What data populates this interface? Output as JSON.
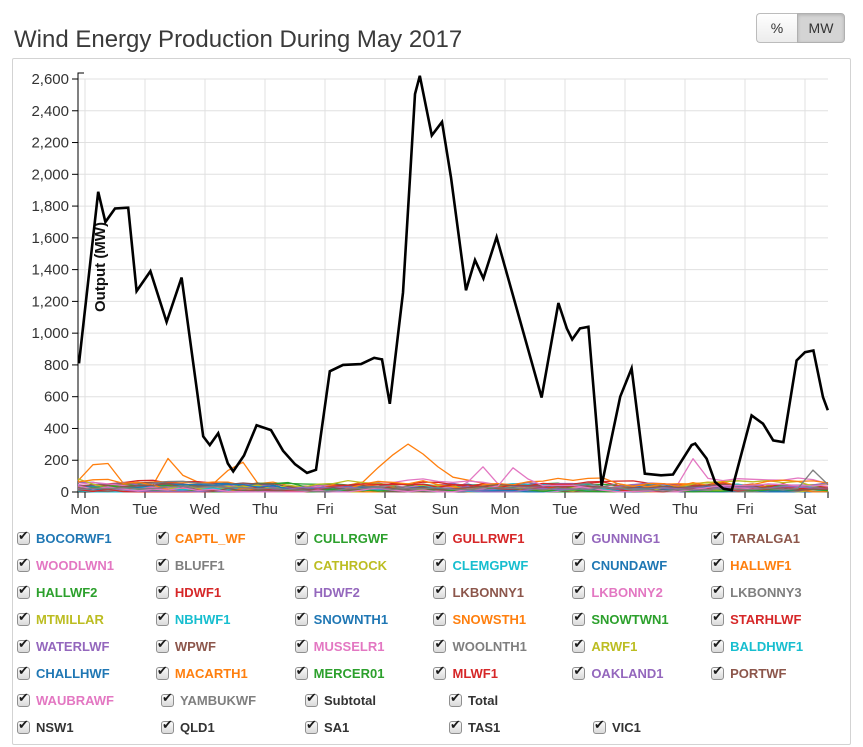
{
  "header": {
    "title": "Wind Energy Production During May 2017",
    "unit_toggle": {
      "percent_label": "%",
      "mw_label": "MW",
      "selected": "MW"
    }
  },
  "chart_data": {
    "type": "line",
    "title": "Wind Energy Production During May 2017",
    "xlabel": "",
    "ylabel": "Output (MW)",
    "ylim": [
      0,
      2600
    ],
    "y_tick_step": 200,
    "y_tick_labels": [
      "0",
      "200",
      "400",
      "600",
      "800",
      "1,000",
      "1,200",
      "1,400",
      "1,600",
      "1,800",
      "2,000",
      "2,200",
      "2,400",
      "2,600"
    ],
    "x_tick_labels": [
      "Mon",
      "Tue",
      "Wed",
      "Thu",
      "Fri",
      "Sat",
      "Sun",
      "Mon",
      "Tue",
      "Wed",
      "Thu",
      "Fri",
      "Sat"
    ],
    "x_unit": "days (Mon = 0, one tick per day)",
    "grid": true,
    "legend_position": "bottom",
    "total_series": {
      "name": "Total",
      "color": "#000000",
      "points": [
        [
          -0.1,
          810
        ],
        [
          0.22,
          1890
        ],
        [
          0.34,
          1700
        ],
        [
          0.5,
          1785
        ],
        [
          0.72,
          1790
        ],
        [
          0.86,
          1265
        ],
        [
          1.09,
          1390
        ],
        [
          1.36,
          1070
        ],
        [
          1.61,
          1350
        ],
        [
          1.97,
          350
        ],
        [
          2.08,
          295
        ],
        [
          2.22,
          370
        ],
        [
          2.38,
          180
        ],
        [
          2.47,
          130
        ],
        [
          2.65,
          230
        ],
        [
          2.86,
          420
        ],
        [
          3.1,
          390
        ],
        [
          3.3,
          260
        ],
        [
          3.5,
          175
        ],
        [
          3.7,
          120
        ],
        [
          3.85,
          140
        ],
        [
          4.08,
          760
        ],
        [
          4.3,
          800
        ],
        [
          4.6,
          805
        ],
        [
          4.82,
          845
        ],
        [
          4.95,
          835
        ],
        [
          5.08,
          555
        ],
        [
          5.3,
          1255
        ],
        [
          5.42,
          2000
        ],
        [
          5.5,
          2505
        ],
        [
          5.58,
          2620
        ],
        [
          5.78,
          2245
        ],
        [
          5.95,
          2330
        ],
        [
          6.1,
          1980
        ],
        [
          6.35,
          1270
        ],
        [
          6.5,
          1460
        ],
        [
          6.64,
          1345
        ],
        [
          6.86,
          1605
        ],
        [
          7.25,
          1080
        ],
        [
          7.61,
          595
        ],
        [
          7.89,
          1190
        ],
        [
          8.03,
          1030
        ],
        [
          8.12,
          960
        ],
        [
          8.25,
          1030
        ],
        [
          8.39,
          1040
        ],
        [
          8.61,
          40
        ],
        [
          8.92,
          600
        ],
        [
          9.11,
          778
        ],
        [
          9.33,
          115
        ],
        [
          9.6,
          105
        ],
        [
          9.8,
          110
        ],
        [
          10.11,
          295
        ],
        [
          10.17,
          305
        ],
        [
          10.36,
          210
        ],
        [
          10.5,
          63
        ],
        [
          10.64,
          21
        ],
        [
          10.78,
          12
        ],
        [
          11.11,
          482
        ],
        [
          11.3,
          430
        ],
        [
          11.47,
          325
        ],
        [
          11.64,
          314
        ],
        [
          11.86,
          828
        ],
        [
          12.0,
          880
        ],
        [
          12.14,
          891
        ],
        [
          12.3,
          597
        ],
        [
          12.38,
          515
        ]
      ]
    },
    "subtotal_series": {
      "name": "Subtotal",
      "color": "#333333",
      "same_as": "total_series"
    },
    "farm_series": [
      {
        "name": "BOCORWF1",
        "color": "#1f77b4",
        "max_mw": 55
      },
      {
        "name": "CAPTL_WF",
        "color": "#ff7f0e",
        "max_mw": 95,
        "spikes": [
          [
            0.27,
            205,
            0.15
          ],
          [
            1.42,
            170,
            0.13
          ],
          [
            2.55,
            170,
            0.12
          ],
          [
            5.4,
            255,
            0.38
          ]
        ]
      },
      {
        "name": "CULLRGWF",
        "color": "#2ca02c",
        "max_mw": 60
      },
      {
        "name": "GULLRWF1",
        "color": "#d62728",
        "max_mw": 75
      },
      {
        "name": "GUNNING1",
        "color": "#9467bd",
        "max_mw": 40
      },
      {
        "name": "TARALGA1",
        "color": "#8c564b",
        "max_mw": 70
      },
      {
        "name": "WOODLWN1",
        "color": "#e377c2",
        "max_mw": 45,
        "spikes": [
          [
            6.6,
            140,
            0.15
          ]
        ]
      },
      {
        "name": "BLUFF1",
        "color": "#7f7f7f",
        "max_mw": 50
      },
      {
        "name": "CATHROCK",
        "color": "#bcbd22",
        "max_mw": 65
      },
      {
        "name": "CLEMGPWF",
        "color": "#17becf",
        "max_mw": 50
      },
      {
        "name": "CNUNDAWF",
        "color": "#1f77b4",
        "max_mw": 40
      },
      {
        "name": "HALLWF1",
        "color": "#ff7f0e",
        "max_mw": 80
      },
      {
        "name": "HALLWF2",
        "color": "#2ca02c",
        "max_mw": 60
      },
      {
        "name": "HDWF1",
        "color": "#d62728",
        "max_mw": 85
      },
      {
        "name": "HDWF2",
        "color": "#9467bd",
        "max_mw": 70
      },
      {
        "name": "LKBONNY1",
        "color": "#8c564b",
        "max_mw": 45
      },
      {
        "name": "LKBONNY2",
        "color": "#e377c2",
        "max_mw": 90,
        "spikes": [
          [
            10.14,
            160,
            0.12
          ]
        ]
      },
      {
        "name": "LKBONNY3",
        "color": "#7f7f7f",
        "max_mw": 35
      },
      {
        "name": "MTMILLAR",
        "color": "#bcbd22",
        "max_mw": 60
      },
      {
        "name": "NBHWF1",
        "color": "#17becf",
        "max_mw": 55
      },
      {
        "name": "SNOWNTH1",
        "color": "#1f77b4",
        "max_mw": 75
      },
      {
        "name": "SNOWSTH1",
        "color": "#ff7f0e",
        "max_mw": 65
      },
      {
        "name": "SNOWTWN1",
        "color": "#2ca02c",
        "max_mw": 50
      },
      {
        "name": "STARHLWF",
        "color": "#d62728",
        "max_mw": 80
      },
      {
        "name": "WATERLWF",
        "color": "#9467bd",
        "max_mw": 85
      },
      {
        "name": "WPWF",
        "color": "#8c564b",
        "max_mw": 60
      },
      {
        "name": "MUSSELR1",
        "color": "#e377c2",
        "max_mw": 70
      },
      {
        "name": "WOOLNTH1",
        "color": "#7f7f7f",
        "max_mw": 90
      },
      {
        "name": "ARWF1",
        "color": "#bcbd22",
        "max_mw": 100
      },
      {
        "name": "BALDHWF1",
        "color": "#17becf",
        "max_mw": 45
      },
      {
        "name": "CHALLHWF",
        "color": "#1f77b4",
        "max_mw": 55
      },
      {
        "name": "MACARTH1",
        "color": "#ff7f0e",
        "max_mw": 105
      },
      {
        "name": "MERCER01",
        "color": "#2ca02c",
        "max_mw": 35
      },
      {
        "name": "MLWF1",
        "color": "#d62728",
        "max_mw": 65
      },
      {
        "name": "OAKLAND1",
        "color": "#9467bd",
        "max_mw": 50
      },
      {
        "name": "PORTWF",
        "color": "#8c564b",
        "max_mw": 60
      },
      {
        "name": "WAUBRAWF",
        "color": "#e377c2",
        "max_mw": 55,
        "spikes": [
          [
            7.2,
            150,
            0.12
          ]
        ]
      },
      {
        "name": "YAMBUKWF",
        "color": "#7f7f7f",
        "max_mw": 45,
        "spikes": [
          [
            12.15,
            115,
            0.12
          ]
        ]
      }
    ],
    "region_series": [
      {
        "name": "NSW1",
        "color": "#3a3a3a",
        "max_mw": 10
      },
      {
        "name": "QLD1",
        "color": "#3a3a3a",
        "max_mw": 4
      },
      {
        "name": "SA1",
        "color": "#3a3a3a",
        "max_mw": 9
      },
      {
        "name": "TAS1",
        "color": "#3a3a3a",
        "max_mw": 6
      },
      {
        "name": "VIC1",
        "color": "#3a3a3a",
        "max_mw": 10
      }
    ],
    "values_estimated_from_pixels": true
  },
  "legend": {
    "rows": [
      [
        {
          "label": "BOCORWF1",
          "color": "#1f77b4",
          "checked": true
        },
        {
          "label": "CAPTL_WF",
          "color": "#ff7f0e",
          "checked": true
        },
        {
          "label": "CULLRGWF",
          "color": "#2ca02c",
          "checked": true
        },
        {
          "label": "GULLRWF1",
          "color": "#d62728",
          "checked": true
        },
        {
          "label": "GUNNING1",
          "color": "#9467bd",
          "checked": true
        },
        {
          "label": "TARALGA1",
          "color": "#8c564b",
          "checked": true
        }
      ],
      [
        {
          "label": "WOODLWN1",
          "color": "#e377c2",
          "checked": true
        },
        {
          "label": "BLUFF1",
          "color": "#7f7f7f",
          "checked": true
        },
        {
          "label": "CATHROCK",
          "color": "#bcbd22",
          "checked": true
        },
        {
          "label": "CLEMGPWF",
          "color": "#17becf",
          "checked": true
        },
        {
          "label": "CNUNDAWF",
          "color": "#1f77b4",
          "checked": true
        },
        {
          "label": "HALLWF1",
          "color": "#ff7f0e",
          "checked": true
        }
      ],
      [
        {
          "label": "HALLWF2",
          "color": "#2ca02c",
          "checked": true
        },
        {
          "label": "HDWF1",
          "color": "#d62728",
          "checked": true
        },
        {
          "label": "HDWF2",
          "color": "#9467bd",
          "checked": true
        },
        {
          "label": "LKBONNY1",
          "color": "#8c564b",
          "checked": true
        },
        {
          "label": "LKBONNY2",
          "color": "#e377c2",
          "checked": true
        },
        {
          "label": "LKBONNY3",
          "color": "#7f7f7f",
          "checked": true
        }
      ],
      [
        {
          "label": "MTMILLAR",
          "color": "#bcbd22",
          "checked": true
        },
        {
          "label": "NBHWF1",
          "color": "#17becf",
          "checked": true
        },
        {
          "label": "SNOWNTH1",
          "color": "#1f77b4",
          "checked": true
        },
        {
          "label": "SNOWSTH1",
          "color": "#ff7f0e",
          "checked": true
        },
        {
          "label": "SNOWTWN1",
          "color": "#2ca02c",
          "checked": true
        },
        {
          "label": "STARHLWF",
          "color": "#d62728",
          "checked": true
        }
      ],
      [
        {
          "label": "WATERLWF",
          "color": "#9467bd",
          "checked": true
        },
        {
          "label": "WPWF",
          "color": "#8c564b",
          "checked": true
        },
        {
          "label": "MUSSELR1",
          "color": "#e377c2",
          "checked": true
        },
        {
          "label": "WOOLNTH1",
          "color": "#7f7f7f",
          "checked": true
        },
        {
          "label": "ARWF1",
          "color": "#bcbd22",
          "checked": true
        },
        {
          "label": "BALDHWF1",
          "color": "#17becf",
          "checked": true
        }
      ],
      [
        {
          "label": "CHALLHWF",
          "color": "#1f77b4",
          "checked": true
        },
        {
          "label": "MACARTH1",
          "color": "#ff7f0e",
          "checked": true
        },
        {
          "label": "MERCER01",
          "color": "#2ca02c",
          "checked": true
        },
        {
          "label": "MLWF1",
          "color": "#d62728",
          "checked": true
        },
        {
          "label": "OAKLAND1",
          "color": "#9467bd",
          "checked": true
        },
        {
          "label": "PORTWF",
          "color": "#8c564b",
          "checked": true
        }
      ],
      [
        {
          "label": "WAUBRAWF",
          "color": "#e377c2",
          "checked": true
        },
        {
          "label": "YAMBUKWF",
          "color": "#7f7f7f",
          "checked": true
        },
        {
          "label": "Subtotal",
          "color": "#333333",
          "checked": true
        },
        {
          "label": "Total",
          "color": "#333333",
          "checked": true
        }
      ],
      [
        {
          "label": "NSW1",
          "color": "#333333",
          "checked": true
        },
        {
          "label": "QLD1",
          "color": "#333333",
          "checked": true
        },
        {
          "label": "SA1",
          "color": "#333333",
          "checked": true
        },
        {
          "label": "TAS1",
          "color": "#333333",
          "checked": true
        },
        {
          "label": "VIC1",
          "color": "#333333",
          "checked": true
        }
      ]
    ],
    "checkmark_glyph": "✔"
  },
  "style": {
    "gridline_color": "#e0e0e0",
    "axis_color": "#000000",
    "axis_text_color": "#333333",
    "container_border_color": "#d3d3d3"
  }
}
